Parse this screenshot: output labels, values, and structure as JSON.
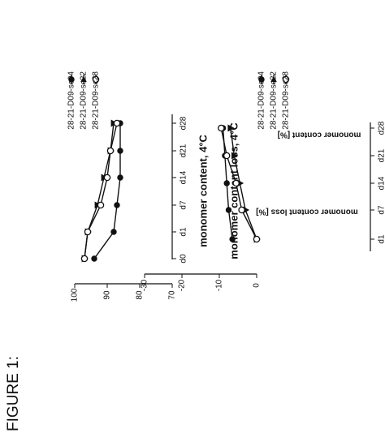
{
  "figure_label": "FIGURE 1:",
  "colors": {
    "ink": "#111111",
    "background": "#ffffff"
  },
  "legend": [
    {
      "label": "28-21-D09-sc04",
      "marker": "filled-circle"
    },
    {
      "label": "28-21-D09-sc22",
      "marker": "filled-triangle"
    },
    {
      "label": "28-21-D09-sc28",
      "marker": "open-circle"
    }
  ],
  "chart_data": [
    {
      "type": "line",
      "title": "monomer content, 4°C",
      "xlabel": "",
      "ylabel": "monomer content  [%]",
      "categories": [
        "d0",
        "d1",
        "d7",
        "d14",
        "d21",
        "d28"
      ],
      "yticks": [
        100,
        90,
        80,
        70
      ],
      "ylim": [
        70,
        100
      ],
      "series": [
        {
          "name": "28-21-D09-sc04",
          "marker": "filled-circle",
          "values": [
            94,
            88,
            87,
            86,
            86,
            86
          ]
        },
        {
          "name": "28-21-D09-sc22",
          "marker": "filled-triangle",
          "values": [
            97,
            96,
            93,
            91,
            89,
            88
          ]
        },
        {
          "name": "28-21-D09-sc28",
          "marker": "open-circle",
          "values": [
            97,
            96,
            92,
            90,
            89,
            87
          ]
        }
      ],
      "grid": false,
      "legend_position": "top",
      "orientation": "rotated 90° counter-clockwise on the page"
    },
    {
      "type": "line",
      "title": "monomer content loss, 4°C",
      "xlabel": "",
      "ylabel": "monomer content loss [%]",
      "categories": [
        "d1",
        "d7",
        "d14",
        "d21",
        "d28"
      ],
      "ytick_labels": [
        "0",
        "-10",
        "-20",
        "-30"
      ],
      "ylim": [
        0,
        -30
      ],
      "series": [
        {
          "name": "28-21-D09-sc04",
          "marker": "filled-circle",
          "values": [
            -6.5,
            -7.5,
            -8,
            -8.5,
            -9
          ]
        },
        {
          "name": "28-21-D09-sc22",
          "marker": "filled-triangle",
          "values": [
            0,
            -3,
            -4.5,
            -6,
            -7
          ]
        },
        {
          "name": "28-21-D09-sc28",
          "marker": "open-circle",
          "values": [
            0,
            -4,
            -5.5,
            -8,
            -9.5
          ]
        }
      ],
      "grid": false,
      "legend_position": "top",
      "orientation": "rotated 90° counter-clockwise on the page"
    }
  ]
}
